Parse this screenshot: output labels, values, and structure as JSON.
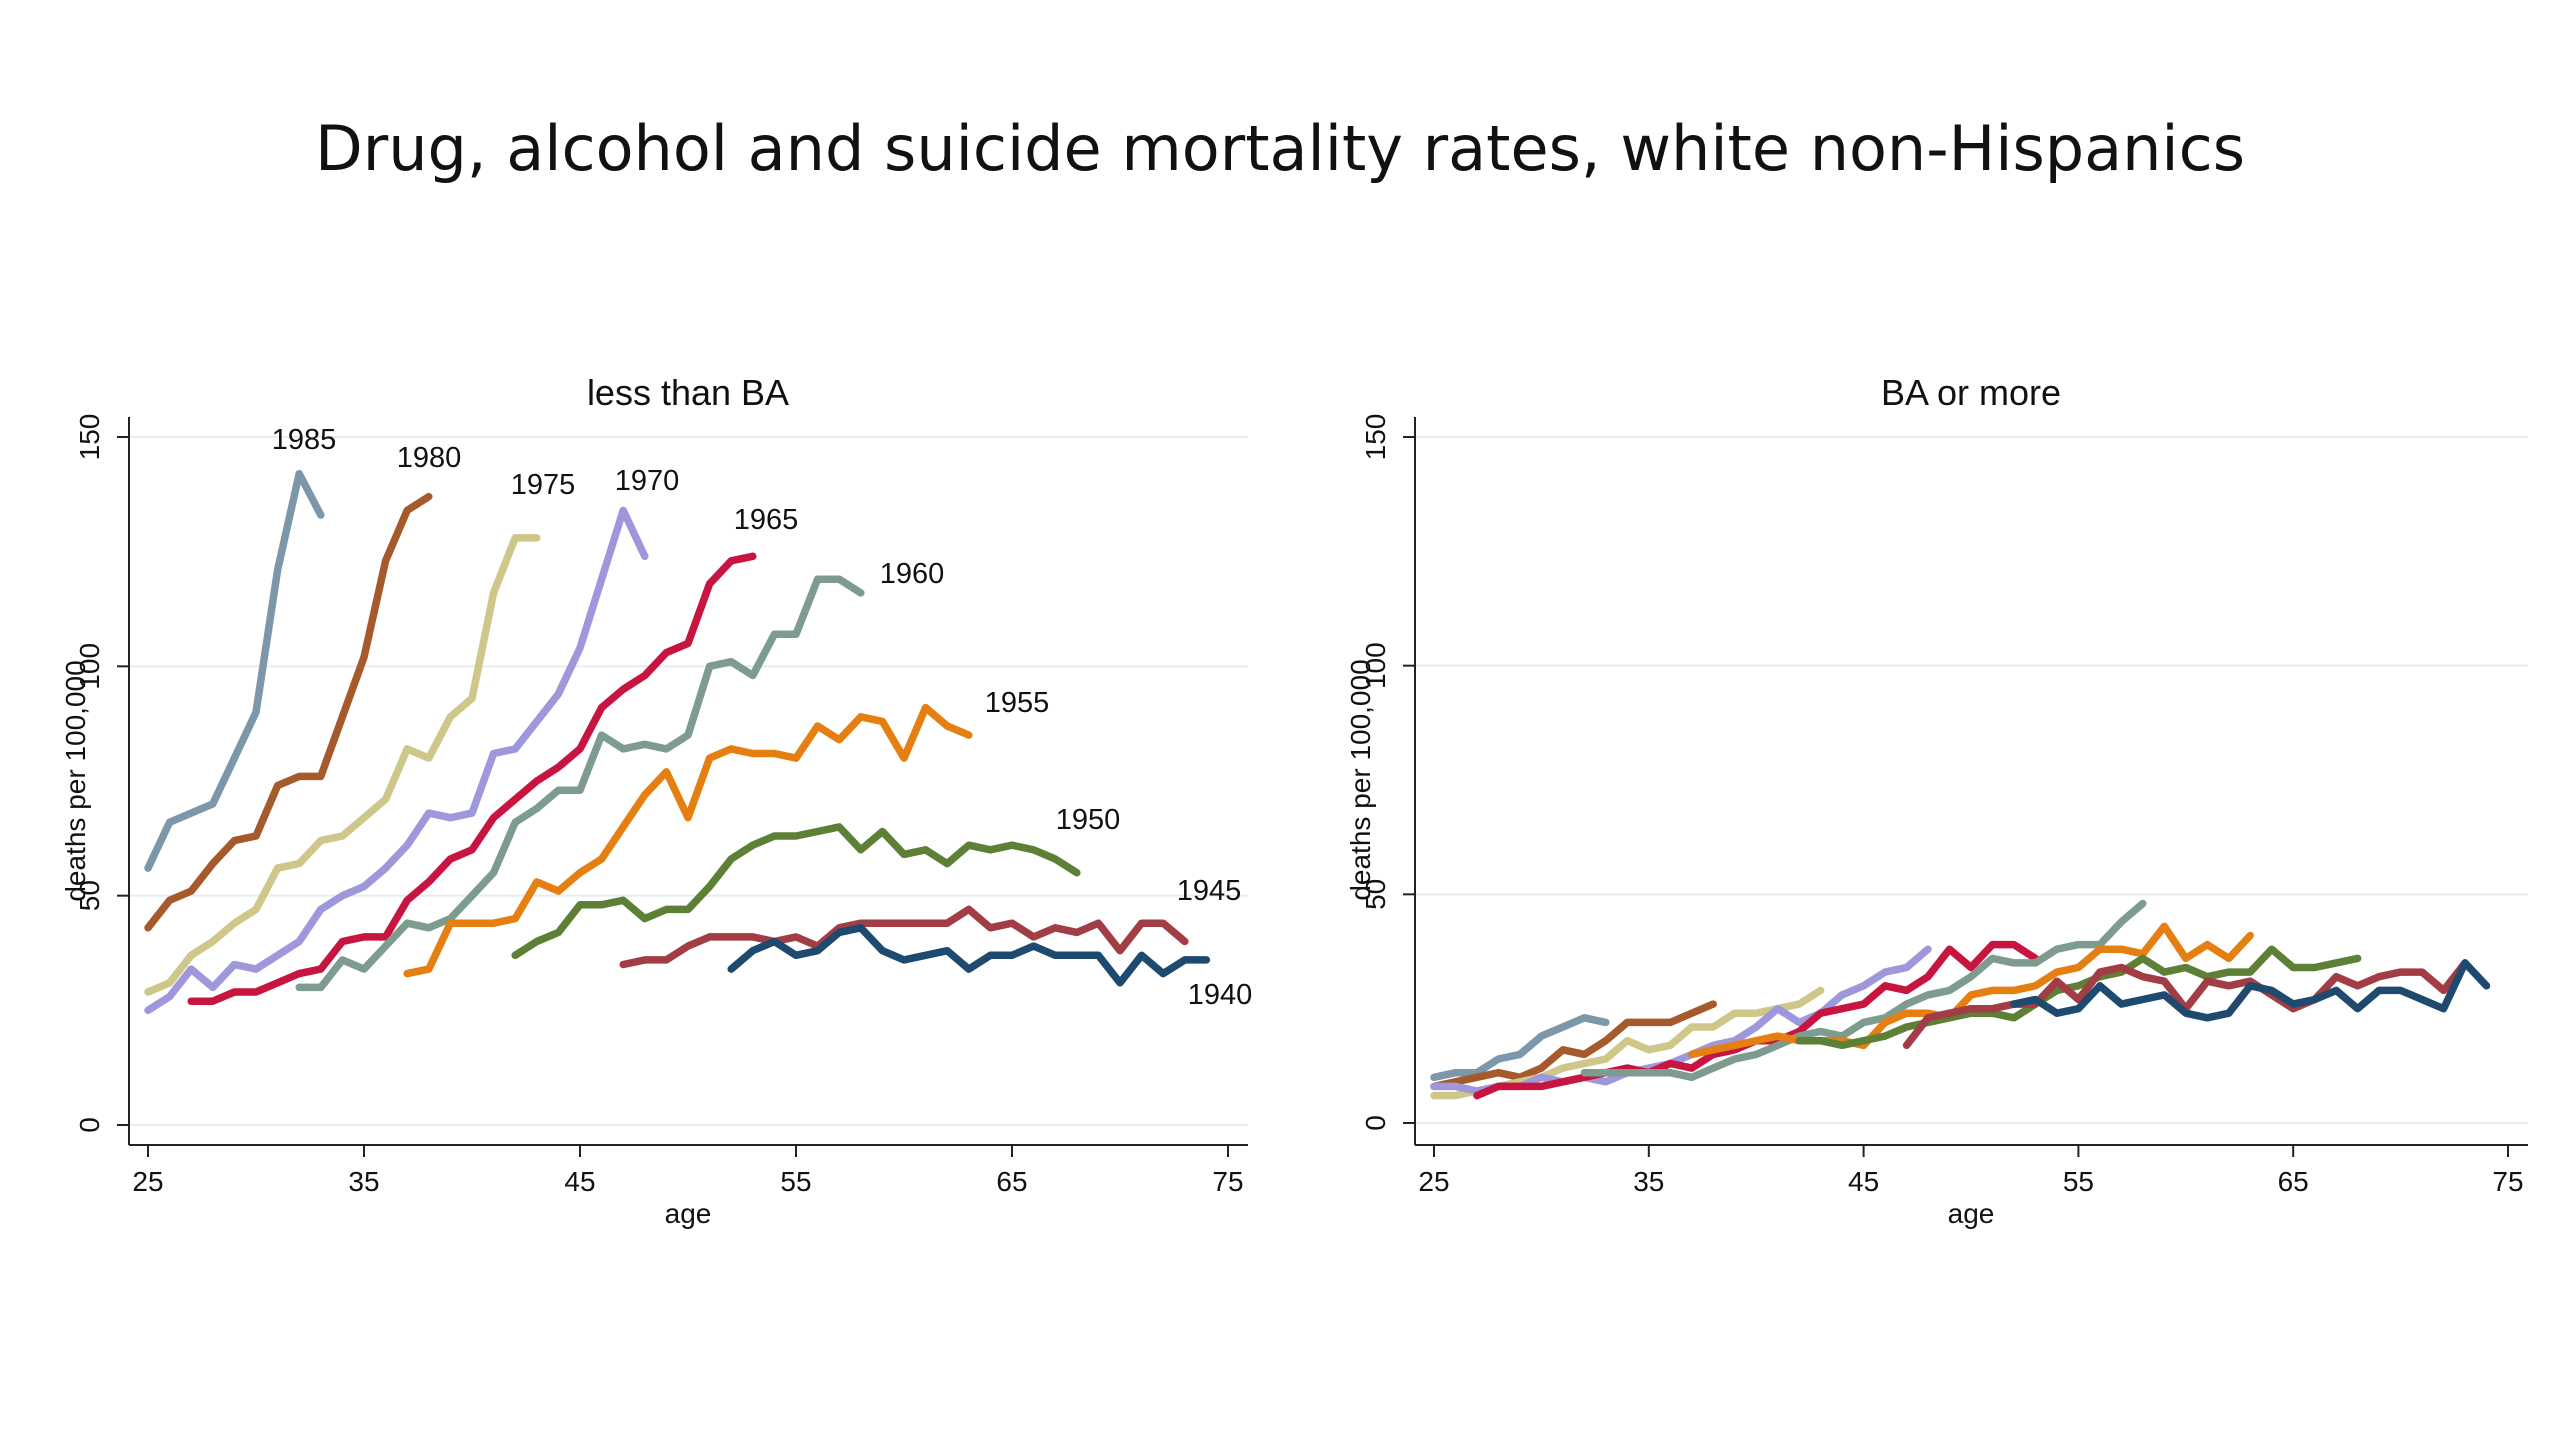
{
  "slide": {
    "title": "Drug, alcohol and suicide mortality rates, white non-Hispanics"
  },
  "chart_data": [
    {
      "type": "line",
      "title": "less than BA",
      "xlabel": "age",
      "ylabel": "deaths per 100,000",
      "xlim": [
        25,
        75
      ],
      "ylim": [
        0,
        150
      ],
      "xticks": [
        25,
        35,
        45,
        55,
        65,
        75
      ],
      "yticks": [
        0,
        50,
        100,
        150
      ],
      "grid": true,
      "series": [
        {
          "name": "1985",
          "color": "#7b97a9",
          "x": [
            25,
            26,
            27,
            28,
            29,
            30,
            31,
            32,
            33
          ],
          "y": [
            56,
            66,
            68,
            70,
            80,
            90,
            121,
            142,
            133
          ]
        },
        {
          "name": "1980",
          "color": "#a65a2c",
          "x": [
            25,
            26,
            27,
            28,
            29,
            30,
            31,
            32,
            33,
            34,
            35,
            36,
            37,
            38
          ],
          "y": [
            43,
            49,
            51,
            57,
            62,
            63,
            74,
            76,
            76,
            89,
            102,
            123,
            134,
            137
          ]
        },
        {
          "name": "1975",
          "color": "#cfc689",
          "x": [
            25,
            26,
            27,
            28,
            29,
            30,
            31,
            32,
            33,
            34,
            35,
            36,
            37,
            38,
            39,
            40,
            41,
            42,
            43
          ],
          "y": [
            29,
            31,
            37,
            40,
            44,
            47,
            56,
            57,
            62,
            63,
            67,
            71,
            82,
            80,
            89,
            93,
            116,
            128,
            128
          ]
        },
        {
          "name": "1970",
          "color": "#9f97db",
          "x": [
            25,
            26,
            27,
            28,
            29,
            30,
            31,
            32,
            33,
            34,
            35,
            36,
            37,
            38,
            39,
            40,
            41,
            42,
            43,
            44,
            45,
            46,
            47,
            48
          ],
          "y": [
            25,
            28,
            34,
            30,
            35,
            34,
            37,
            40,
            47,
            50,
            52,
            56,
            61,
            68,
            67,
            68,
            81,
            82,
            88,
            94,
            104,
            119,
            134,
            124
          ]
        },
        {
          "name": "1965",
          "color": "#c8153f",
          "x": [
            27,
            28,
            29,
            30,
            31,
            32,
            33,
            34,
            35,
            36,
            37,
            38,
            39,
            40,
            41,
            42,
            43,
            44,
            45,
            46,
            47,
            48,
            49,
            50,
            51,
            52,
            53
          ],
          "y": [
            27,
            27,
            29,
            29,
            31,
            33,
            34,
            40,
            41,
            41,
            49,
            53,
            58,
            60,
            67,
            71,
            75,
            78,
            82,
            91,
            95,
            98,
            103,
            105,
            118,
            123,
            124
          ]
        },
        {
          "name": "1960",
          "color": "#7d9b8f",
          "x": [
            32,
            33,
            34,
            35,
            36,
            37,
            38,
            39,
            40,
            41,
            42,
            43,
            44,
            45,
            46,
            47,
            48,
            49,
            50,
            51,
            52,
            53,
            54,
            55,
            56,
            57,
            58
          ],
          "y": [
            30,
            30,
            36,
            34,
            39,
            44,
            43,
            45,
            50,
            55,
            66,
            69,
            73,
            73,
            85,
            82,
            83,
            82,
            85,
            100,
            101,
            98,
            107,
            107,
            119,
            119,
            116
          ]
        },
        {
          "name": "1955",
          "color": "#e67f11",
          "x": [
            37,
            38,
            39,
            40,
            41,
            42,
            43,
            44,
            45,
            46,
            47,
            48,
            49,
            50,
            51,
            52,
            53,
            54,
            55,
            56,
            57,
            58,
            59,
            60,
            61,
            62,
            63
          ],
          "y": [
            33,
            34,
            44,
            44,
            44,
            45,
            53,
            51,
            55,
            58,
            65,
            72,
            77,
            67,
            80,
            82,
            81,
            81,
            80,
            87,
            84,
            89,
            88,
            80,
            91,
            87,
            85
          ]
        },
        {
          "name": "1950",
          "color": "#5e8036",
          "x": [
            42,
            43,
            44,
            45,
            46,
            47,
            48,
            49,
            50,
            51,
            52,
            53,
            54,
            55,
            56,
            57,
            58,
            59,
            60,
            61,
            62,
            63,
            64,
            65,
            66,
            67,
            68
          ],
          "y": [
            37,
            40,
            42,
            48,
            48,
            49,
            45,
            47,
            47,
            52,
            58,
            61,
            63,
            63,
            64,
            65,
            60,
            64,
            59,
            60,
            57,
            61,
            60,
            61,
            60,
            58,
            55
          ]
        },
        {
          "name": "1945",
          "color": "#a23c45",
          "x": [
            47,
            48,
            49,
            50,
            51,
            52,
            53,
            54,
            55,
            56,
            57,
            58,
            59,
            60,
            61,
            62,
            63,
            64,
            65,
            66,
            67,
            68,
            69,
            70,
            71,
            72,
            73
          ],
          "y": [
            35,
            36,
            36,
            39,
            41,
            41,
            41,
            40,
            41,
            39,
            43,
            44,
            44,
            44,
            44,
            44,
            47,
            43,
            44,
            41,
            43,
            42,
            44,
            38,
            44,
            44,
            40
          ]
        },
        {
          "name": "1940",
          "color": "#1e4a6f",
          "x": [
            52,
            53,
            54,
            55,
            56,
            57,
            58,
            59,
            60,
            61,
            62,
            63,
            64,
            65,
            66,
            67,
            68,
            69,
            70,
            71,
            72,
            73,
            74
          ],
          "y": [
            34,
            38,
            40,
            37,
            38,
            42,
            43,
            38,
            36,
            37,
            38,
            34,
            37,
            37,
            39,
            37,
            37,
            37,
            31,
            37,
            33,
            36,
            36
          ]
        }
      ]
    },
    {
      "type": "line",
      "title": "BA or more",
      "xlabel": "age",
      "ylabel": "deaths per 100,000",
      "xlim": [
        25,
        75
      ],
      "ylim": [
        0,
        150
      ],
      "xticks": [
        25,
        35,
        45,
        55,
        65,
        75
      ],
      "yticks": [
        0,
        50,
        100,
        150
      ],
      "grid": true,
      "series": [
        {
          "color": "#7b97a9",
          "x": [
            25,
            26,
            27,
            28,
            29,
            30,
            31,
            32,
            33
          ],
          "y": [
            10,
            11,
            11,
            14,
            15,
            19,
            21,
            23,
            22
          ]
        },
        {
          "color": "#a65a2c",
          "x": [
            25,
            26,
            27,
            28,
            29,
            30,
            31,
            32,
            33,
            34,
            35,
            36,
            37,
            38
          ],
          "y": [
            8,
            9,
            10,
            11,
            10,
            12,
            16,
            15,
            18,
            22,
            22,
            22,
            24,
            26
          ]
        },
        {
          "color": "#cfc689",
          "x": [
            25,
            26,
            27,
            28,
            29,
            30,
            31,
            32,
            33,
            34,
            35,
            36,
            37,
            38,
            39,
            40,
            41,
            42,
            43
          ],
          "y": [
            6,
            6,
            7,
            8,
            9,
            10,
            12,
            13,
            14,
            18,
            16,
            17,
            21,
            21,
            24,
            24,
            25,
            26,
            29
          ]
        },
        {
          "color": "#9f97db",
          "x": [
            25,
            26,
            27,
            28,
            29,
            30,
            31,
            32,
            33,
            34,
            35,
            36,
            37,
            38,
            39,
            40,
            41,
            42,
            43,
            44,
            45,
            46,
            47,
            48
          ],
          "y": [
            8,
            8,
            7,
            8,
            8,
            10,
            9,
            10,
            9,
            11,
            12,
            13,
            15,
            17,
            18,
            21,
            25,
            22,
            24,
            28,
            30,
            33,
            34,
            38
          ]
        },
        {
          "color": "#c8153f",
          "x": [
            27,
            28,
            29,
            30,
            31,
            32,
            33,
            34,
            35,
            36,
            37,
            38,
            39,
            40,
            41,
            42,
            43,
            44,
            45,
            46,
            47,
            48,
            49,
            50,
            51,
            52,
            53
          ],
          "y": [
            6,
            8,
            8,
            8,
            9,
            10,
            11,
            12,
            11,
            13,
            12,
            15,
            16,
            18,
            18,
            20,
            24,
            25,
            26,
            30,
            29,
            32,
            38,
            34,
            39,
            39,
            36
          ]
        },
        {
          "color": "#7d9b8f",
          "x": [
            32,
            33,
            34,
            35,
            36,
            37,
            38,
            39,
            40,
            41,
            42,
            43,
            44,
            45,
            46,
            47,
            48,
            49,
            50,
            51,
            52,
            53,
            54,
            55,
            56,
            57,
            58
          ],
          "y": [
            11,
            11,
            11,
            11,
            11,
            10,
            12,
            14,
            15,
            17,
            19,
            20,
            19,
            22,
            23,
            26,
            28,
            29,
            32,
            36,
            35,
            35,
            38,
            39,
            39,
            44,
            48
          ]
        },
        {
          "color": "#e67f11",
          "x": [
            37,
            38,
            39,
            40,
            41,
            42,
            43,
            44,
            45,
            46,
            47,
            48,
            49,
            50,
            51,
            52,
            53,
            54,
            55,
            56,
            57,
            58,
            59,
            60,
            61,
            62,
            63
          ],
          "y": [
            15,
            16,
            17,
            18,
            19,
            18,
            18,
            18,
            17,
            22,
            24,
            24,
            23,
            28,
            29,
            29,
            30,
            33,
            34,
            38,
            38,
            37,
            43,
            36,
            39,
            36,
            41
          ]
        },
        {
          "color": "#5e8036",
          "x": [
            42,
            43,
            44,
            45,
            46,
            47,
            48,
            49,
            50,
            51,
            52,
            53,
            54,
            55,
            56,
            57,
            58,
            59,
            60,
            61,
            62,
            63,
            64,
            65,
            66,
            67,
            68
          ],
          "y": [
            18,
            18,
            17,
            18,
            19,
            21,
            22,
            23,
            24,
            24,
            23,
            26,
            29,
            30,
            32,
            33,
            36,
            33,
            34,
            32,
            33,
            33,
            38,
            34,
            34,
            35,
            36
          ]
        },
        {
          "color": "#a23c45",
          "x": [
            47,
            48,
            49,
            50,
            51,
            52,
            53,
            54,
            55,
            56,
            57,
            58,
            59,
            60,
            61,
            62,
            63,
            64,
            65,
            66,
            67,
            68,
            69,
            70,
            71,
            72,
            73
          ],
          "y": [
            17,
            23,
            24,
            25,
            25,
            26,
            26,
            31,
            27,
            33,
            34,
            32,
            31,
            25,
            31,
            30,
            31,
            28,
            25,
            27,
            32,
            30,
            32,
            33,
            33,
            29,
            35
          ]
        },
        {
          "color": "#1e4a6f",
          "x": [
            52,
            53,
            54,
            55,
            56,
            57,
            58,
            59,
            60,
            61,
            62,
            63,
            64,
            65,
            66,
            67,
            68,
            69,
            70,
            71,
            72,
            73,
            74
          ],
          "y": [
            26,
            27,
            24,
            25,
            30,
            26,
            27,
            28,
            24,
            23,
            24,
            30,
            29,
            26,
            27,
            29,
            25,
            29,
            29,
            27,
            25,
            35,
            30
          ]
        }
      ]
    }
  ]
}
